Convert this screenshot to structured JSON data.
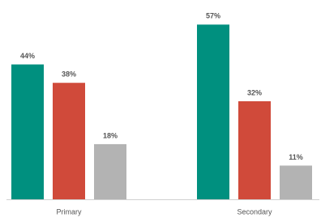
{
  "chart_data": {
    "type": "bar",
    "categories": [
      "Primary",
      "Secondary"
    ],
    "series": [
      {
        "color": "#00907f",
        "values": [
          44,
          57
        ],
        "value_labels": [
          "44%",
          "57%"
        ]
      },
      {
        "color": "#d04a3a",
        "values": [
          38,
          32
        ],
        "value_labels": [
          "38%",
          "32%"
        ]
      },
      {
        "color": "#b3b3b3",
        "values": [
          18,
          11
        ],
        "value_labels": [
          "18%",
          "11%"
        ]
      }
    ],
    "ylim": [
      0,
      60
    ]
  }
}
